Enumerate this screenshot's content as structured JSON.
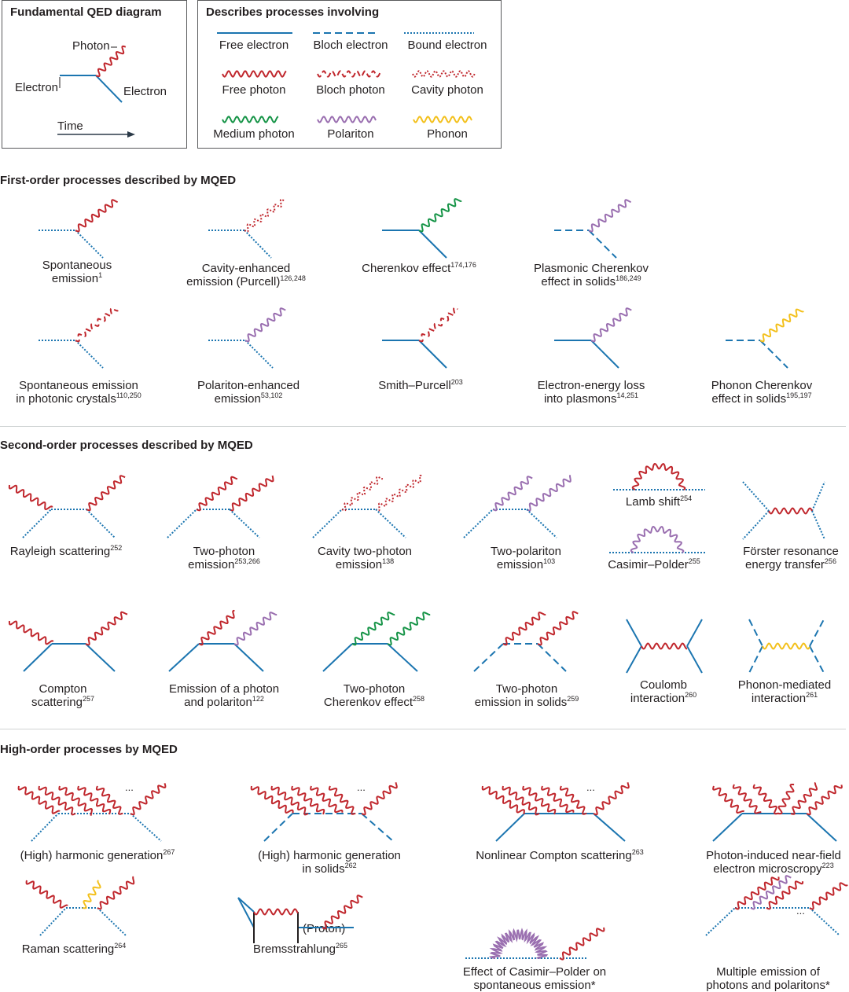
{
  "legend_left": {
    "title": "Fundamental QED diagram",
    "photon": "Photon",
    "electron_in": "Electron",
    "electron_out": "Electron",
    "time": "Time"
  },
  "legend_right": {
    "title": "Describes processes involving",
    "items": [
      {
        "label": "Free electron"
      },
      {
        "label": "Bloch electron"
      },
      {
        "label": "Bound electron"
      },
      {
        "label": "Free photon"
      },
      {
        "label": "Bloch photon"
      },
      {
        "label": "Cavity photon"
      },
      {
        "label": "Medium photon"
      },
      {
        "label": "Polariton"
      },
      {
        "label": "Phonon"
      }
    ]
  },
  "colors": {
    "electron": "#1b75b0",
    "photon": "#c0272d",
    "medium": "#169447",
    "polariton": "#9a6fb0",
    "phonon": "#f3c01c",
    "black": "#231f20"
  },
  "sections": {
    "first": {
      "title": "First-order processes described by MQED",
      "items": [
        {
          "l1": "Spontaneous",
          "l2": "emission",
          "ref": "1"
        },
        {
          "l1": "Cavity-enhanced",
          "l2": "emission (Purcell)",
          "ref": "126,248"
        },
        {
          "l1": "Cherenkov effect",
          "l2": "",
          "ref": "174,176"
        },
        {
          "l1": "Plasmonic Cherenkov",
          "l2": "effect in solids",
          "ref": "186,249"
        },
        {
          "l1": "Spontaneous emission",
          "l2": "in photonic crystals",
          "ref": "110,250"
        },
        {
          "l1": "Polariton-enhanced",
          "l2": "emission",
          "ref": "53,102"
        },
        {
          "l1": "Smith–Purcell",
          "l2": "",
          "ref": "203"
        },
        {
          "l1": "Electron-energy loss",
          "l2": "into plasmons",
          "ref": "14,251"
        },
        {
          "l1": "Phonon Cherenkov",
          "l2": "effect in solids",
          "ref": "195,197"
        }
      ]
    },
    "second": {
      "title": "Second-order processes described by MQED",
      "items": [
        {
          "l1": "Rayleigh scattering",
          "l2": "",
          "ref": "252"
        },
        {
          "l1": "Two-photon",
          "l2": "emission",
          "ref": "253,266"
        },
        {
          "l1": "Cavity two-photon",
          "l2": "emission",
          "ref": "138"
        },
        {
          "l1": "Two-polariton",
          "l2": "emission",
          "ref": "103"
        },
        {
          "l1": "Lamb shift",
          "l2": "",
          "ref": "254"
        },
        {
          "l1": "Casimir–Polder",
          "l2": "",
          "ref": "255"
        },
        {
          "l1": "Förster resonance",
          "l2": "energy transfer",
          "ref": "256"
        },
        {
          "l1": "Compton",
          "l2": "scattering",
          "ref": "257"
        },
        {
          "l1": "Emission of a photon",
          "l2": "and polariton",
          "ref": "122"
        },
        {
          "l1": "Two-photon",
          "l2": "Cherenkov effect",
          "ref": "258"
        },
        {
          "l1": "Two-photon",
          "l2": "emission in solids",
          "ref": "259"
        },
        {
          "l1": "Coulomb",
          "l2": "interaction",
          "ref": "260"
        },
        {
          "l1": "Phonon-mediated",
          "l2": "interaction",
          "ref": "261"
        }
      ]
    },
    "high": {
      "title": "High-order processes by MQED",
      "items": [
        {
          "l1": "(High) harmonic generation",
          "l2": "",
          "ref": "267"
        },
        {
          "l1": "(High) harmonic generation",
          "l2": "in solids",
          "ref": "262"
        },
        {
          "l1": "Nonlinear Compton scattering",
          "l2": "",
          "ref": "263"
        },
        {
          "l1": "Photon-induced near-field",
          "l2": "electron microscropy",
          "ref": "223"
        },
        {
          "l1": "Raman scattering",
          "l2": "",
          "ref": "264"
        },
        {
          "l1": "Bremsstrahlung",
          "l2": "",
          "ref": "265"
        },
        {
          "l1": "Effect of Casimir–Polder on",
          "l2": "spontaneous emission*",
          "ref": ""
        },
        {
          "l1": "Multiple emission of",
          "l2": "photons and polaritons*",
          "ref": ""
        }
      ],
      "ellipsis": "...",
      "proton": "(Proton)"
    }
  }
}
